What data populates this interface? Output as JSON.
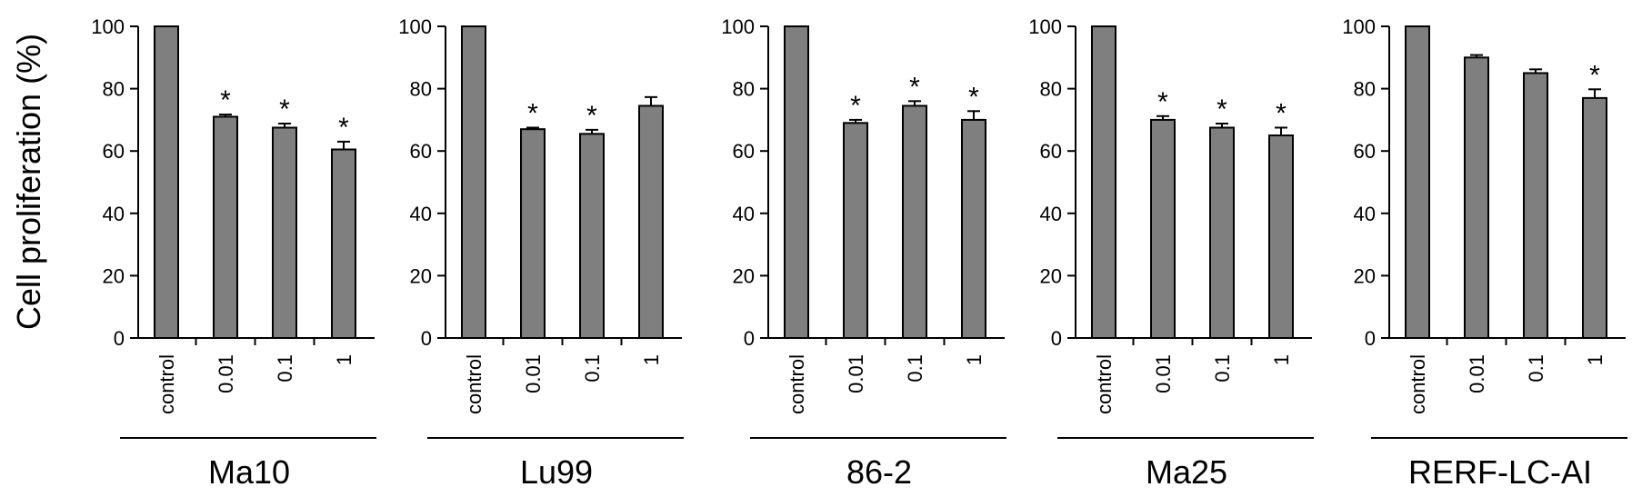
{
  "ylabel": "Cell proliferation (%)",
  "colors": {
    "bar_fill": "#7f7f7f",
    "stroke": "#000000"
  },
  "chart_data": [
    {
      "type": "bar",
      "title": "Ma10",
      "categories": [
        "control",
        "0.01",
        "0.1",
        "1"
      ],
      "values": [
        100,
        71,
        67.5,
        60.5
      ],
      "errors": [
        0,
        0.7,
        1.3,
        2.5
      ],
      "significant": [
        false,
        true,
        true,
        true
      ],
      "significance_marker": "*",
      "yticks": [
        "0",
        "20",
        "40",
        "60",
        "80",
        "100"
      ],
      "ylim": [
        0,
        100
      ]
    },
    {
      "type": "bar",
      "title": "Lu99",
      "categories": [
        "control",
        "0.01",
        "0.1",
        "1"
      ],
      "values": [
        100,
        67,
        65.5,
        74.5
      ],
      "errors": [
        0,
        0.5,
        1.3,
        2.8
      ],
      "significant": [
        false,
        true,
        true,
        false
      ],
      "significance_marker": "*",
      "yticks": [
        "0",
        "20",
        "40",
        "60",
        "80",
        "100"
      ],
      "ylim": [
        0,
        100
      ]
    },
    {
      "type": "bar",
      "title": "86-2",
      "categories": [
        "control",
        "0.01",
        "0.1",
        "1"
      ],
      "values": [
        100,
        69,
        74.5,
        70
      ],
      "errors": [
        0,
        1.0,
        1.5,
        2.8
      ],
      "significant": [
        false,
        true,
        true,
        true
      ],
      "significance_marker": "*",
      "yticks": [
        "0",
        "20",
        "40",
        "60",
        "80",
        "100"
      ],
      "ylim": [
        0,
        100
      ]
    },
    {
      "type": "bar",
      "title": "Ma25",
      "categories": [
        "control",
        "0.01",
        "0.1",
        "1"
      ],
      "values": [
        100,
        70,
        67.5,
        65
      ],
      "errors": [
        0,
        1.2,
        1.3,
        2.5
      ],
      "significant": [
        false,
        true,
        true,
        true
      ],
      "significance_marker": "*",
      "yticks": [
        "0",
        "20",
        "40",
        "60",
        "80",
        "100"
      ],
      "ylim": [
        0,
        100
      ]
    },
    {
      "type": "bar",
      "title": "RERF-LC-AI",
      "categories": [
        "control",
        "0.01",
        "0.1",
        "1"
      ],
      "values": [
        100,
        90,
        85,
        77
      ],
      "errors": [
        0,
        0.8,
        1.2,
        2.8
      ],
      "significant": [
        false,
        false,
        false,
        true
      ],
      "significance_marker": "*",
      "yticks": [
        "0",
        "20",
        "40",
        "60",
        "80",
        "100"
      ],
      "ylim": [
        0,
        100
      ]
    }
  ]
}
